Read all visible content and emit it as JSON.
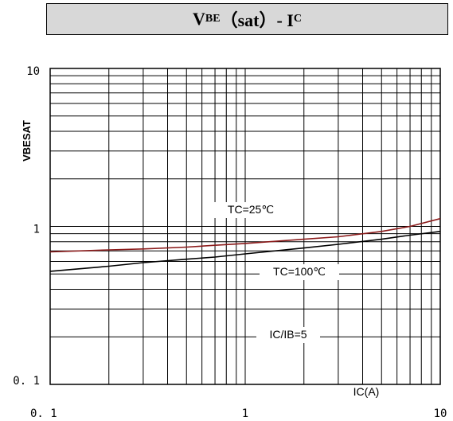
{
  "title": {
    "main": "V",
    "sub1": "BE",
    "mid": "（sat）- I",
    "sub2": "C"
  },
  "chart_data": {
    "type": "line",
    "title": "VBE（sat）- IC",
    "xlabel": "IC(A)",
    "ylabel": "VBESAT",
    "xscale": "log",
    "yscale": "log",
    "xlim": [
      0.1,
      10
    ],
    "ylim": [
      0.1,
      10
    ],
    "x_tick_labels": [
      "0. 1",
      "1",
      "10"
    ],
    "y_tick_labels": [
      "10",
      "1",
      "0. 1"
    ],
    "grid": true,
    "series": [
      {
        "name": "TC=25℃",
        "color": "#8b1a1a",
        "x": [
          0.1,
          0.2,
          0.3,
          0.5,
          0.7,
          1,
          2,
          3,
          5,
          7,
          10
        ],
        "y": [
          0.69,
          0.71,
          0.72,
          0.74,
          0.76,
          0.78,
          0.83,
          0.86,
          0.93,
          1.0,
          1.12
        ]
      },
      {
        "name": "TC=100℃",
        "color": "#000000",
        "x": [
          0.1,
          0.2,
          0.3,
          0.5,
          0.7,
          1,
          2,
          3,
          5,
          7,
          10
        ],
        "y": [
          0.52,
          0.56,
          0.59,
          0.62,
          0.64,
          0.67,
          0.73,
          0.77,
          0.83,
          0.88,
          0.93
        ]
      }
    ],
    "annotations": [
      "TC=25℃",
      "TC=100℃",
      "IC/IB=5"
    ]
  }
}
